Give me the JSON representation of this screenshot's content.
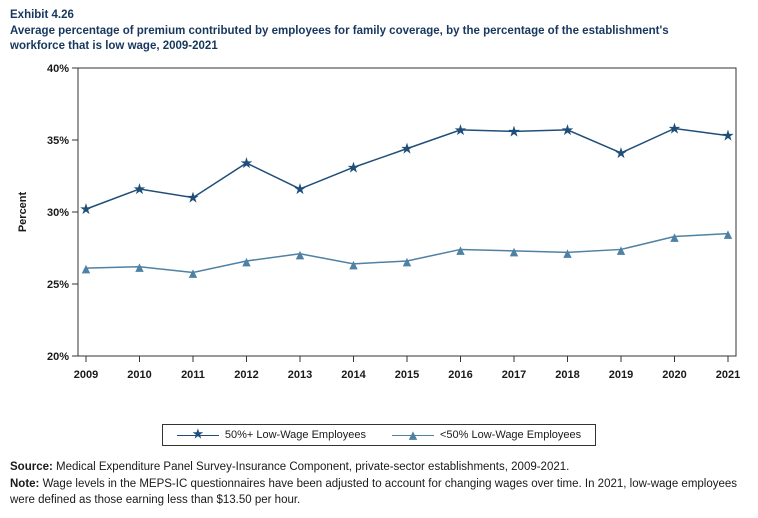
{
  "header": {
    "exhibit": "Exhibit 4.26",
    "title": "Average percentage of premium contributed by employees for family coverage, by the percentage of the establishment's workforce that is low wage, 2009-2021"
  },
  "icons": {
    "star": "★",
    "triangle": "▲"
  },
  "chart_data": {
    "type": "line",
    "title": "Average percentage of premium contributed by employees for family coverage, by the percentage of the establishment's workforce that is low wage, 2009-2021",
    "x": [
      2009,
      2010,
      2011,
      2012,
      2013,
      2014,
      2015,
      2016,
      2017,
      2018,
      2019,
      2020,
      2021
    ],
    "series": [
      {
        "name": "50%+ Low-Wage Employees",
        "marker": "star",
        "marker_glyph": "★",
        "color": "#1F4E79",
        "values": [
          30.2,
          31.6,
          31.0,
          33.4,
          31.6,
          33.1,
          34.4,
          35.7,
          35.6,
          35.7,
          34.1,
          35.8,
          35.3
        ]
      },
      {
        "name": "<50% Low-Wage Employees",
        "marker": "triangle",
        "marker_glyph": "▲",
        "color": "#4F81A4",
        "values": [
          26.1,
          26.2,
          25.8,
          26.6,
          27.1,
          26.4,
          26.6,
          27.4,
          27.3,
          27.2,
          27.4,
          28.3,
          28.5
        ]
      }
    ],
    "xlabel": "",
    "ylabel": "Percent",
    "ylim": [
      20,
      40
    ],
    "yticks": [
      20,
      25,
      30,
      35,
      40
    ],
    "grid": false,
    "legend_position": "bottom"
  },
  "footer": {
    "source_label": "Source:",
    "source_text": "Medical Expenditure Panel Survey-Insurance Component, private-sector establishments, 2009-2021.",
    "note_label": "Note:",
    "note_text": "Wage levels in the MEPS-IC questionnaires have been adjusted to account for changing wages over time.  In 2021, low-wage employees were defined as those earning less than $13.50 per hour."
  }
}
